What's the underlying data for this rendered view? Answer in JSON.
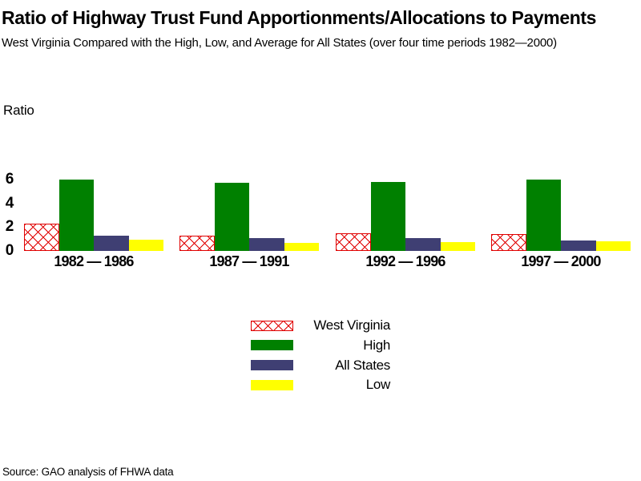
{
  "header": {
    "title": "Ratio of Highway Trust Fund Apportionments/Allocations to Payments",
    "subtitle": "West Virginia Compared with the High, Low, and Average for All States (over four time periods 1982—2000)"
  },
  "footer": {
    "source": "Source: GAO analysis of FHWA data"
  },
  "chart_data": {
    "type": "bar",
    "title": "Ratio of Highway Trust Fund Apportionments/Allocations to Payments",
    "subtitle": "West Virginia Compared with the High, Low, and Average for All States (over four time periods 1982—2000)",
    "ylabel": "Ratio",
    "xlabel": "",
    "ylim": [
      0,
      6
    ],
    "yticks": [
      0,
      2,
      4,
      6
    ],
    "grid": false,
    "legend_position": "bottom-center",
    "categories": [
      "1982 — 1986",
      "1987 — 1991",
      "1992 — 1996",
      "1997 — 2000"
    ],
    "series": [
      {
        "name": "West Virginia",
        "color": "#e00000",
        "pattern": "crosshatch",
        "values": [
          2.3,
          1.3,
          1.5,
          1.45
        ]
      },
      {
        "name": "High",
        "color": "#008000",
        "pattern": "solid",
        "values": [
          6.0,
          5.7,
          5.8,
          6.0
        ]
      },
      {
        "name": "All States",
        "color": "#3f3f73",
        "pattern": "solid",
        "values": [
          1.3,
          1.05,
          1.05,
          0.9
        ]
      },
      {
        "name": "Low",
        "color": "#ffff00",
        "pattern": "solid",
        "values": [
          0.95,
          0.65,
          0.75,
          0.8
        ]
      }
    ]
  }
}
